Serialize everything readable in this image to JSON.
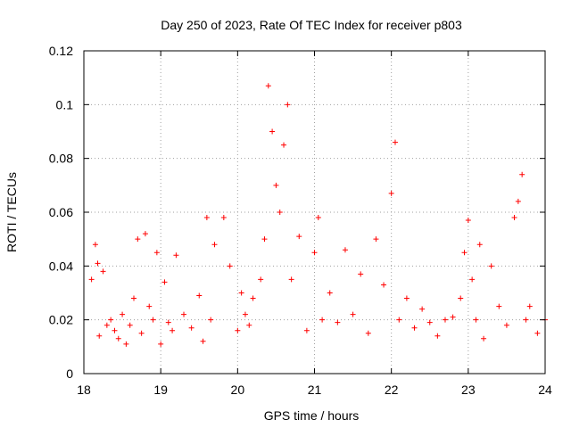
{
  "chart_data": {
    "type": "scatter",
    "title": "Day 250 of 2023, Rate Of TEC Index for receiver p803",
    "xlabel": "GPS time / hours",
    "ylabel": "ROTI / TECUs",
    "xlim": [
      18,
      24
    ],
    "ylim": [
      0,
      0.12
    ],
    "x_ticks": [
      "18",
      "19",
      "20",
      "21",
      "22",
      "23",
      "24"
    ],
    "y_ticks": [
      "0",
      "0.02",
      "0.04",
      "0.06",
      "0.08",
      "0.1",
      "0.12"
    ],
    "grid": true,
    "marker": "plus",
    "series": [
      {
        "name": "ROTI",
        "color": "#ff0000",
        "x": [
          18.1,
          18.15,
          18.18,
          18.2,
          18.25,
          18.3,
          18.35,
          18.4,
          18.45,
          18.5,
          18.55,
          18.6,
          18.65,
          18.7,
          18.75,
          18.8,
          18.85,
          18.9,
          18.95,
          19.0,
          19.05,
          19.1,
          19.15,
          19.2,
          19.3,
          19.4,
          19.5,
          19.55,
          19.6,
          19.65,
          19.7,
          19.82,
          19.9,
          20.0,
          20.05,
          20.1,
          20.15,
          20.2,
          20.3,
          20.35,
          20.4,
          20.45,
          20.5,
          20.55,
          20.6,
          20.65,
          20.7,
          20.8,
          20.9,
          21.0,
          21.05,
          21.1,
          21.2,
          21.3,
          21.4,
          21.5,
          21.6,
          21.7,
          21.8,
          21.9,
          22.0,
          22.05,
          22.1,
          22.2,
          22.3,
          22.4,
          22.5,
          22.6,
          22.7,
          22.8,
          22.9,
          22.95,
          23.0,
          23.05,
          23.1,
          23.15,
          23.2,
          23.3,
          23.4,
          23.5,
          23.6,
          23.65,
          23.7,
          23.75,
          23.8,
          23.9,
          24.0
        ],
        "y": [
          0.035,
          0.048,
          0.041,
          0.014,
          0.038,
          0.018,
          0.02,
          0.016,
          0.013,
          0.022,
          0.011,
          0.018,
          0.028,
          0.05,
          0.015,
          0.052,
          0.025,
          0.02,
          0.045,
          0.011,
          0.034,
          0.019,
          0.016,
          0.044,
          0.022,
          0.017,
          0.029,
          0.012,
          0.058,
          0.02,
          0.048,
          0.058,
          0.04,
          0.016,
          0.03,
          0.022,
          0.018,
          0.028,
          0.035,
          0.05,
          0.107,
          0.09,
          0.07,
          0.06,
          0.085,
          0.1,
          0.035,
          0.051,
          0.016,
          0.045,
          0.058,
          0.02,
          0.03,
          0.019,
          0.046,
          0.022,
          0.037,
          0.015,
          0.05,
          0.033,
          0.067,
          0.086,
          0.02,
          0.028,
          0.017,
          0.024,
          0.019,
          0.014,
          0.02,
          0.021,
          0.028,
          0.045,
          0.057,
          0.035,
          0.02,
          0.048,
          0.013,
          0.04,
          0.025,
          0.018,
          0.058,
          0.064,
          0.074,
          0.02,
          0.025,
          0.015,
          0.02
        ]
      }
    ]
  }
}
